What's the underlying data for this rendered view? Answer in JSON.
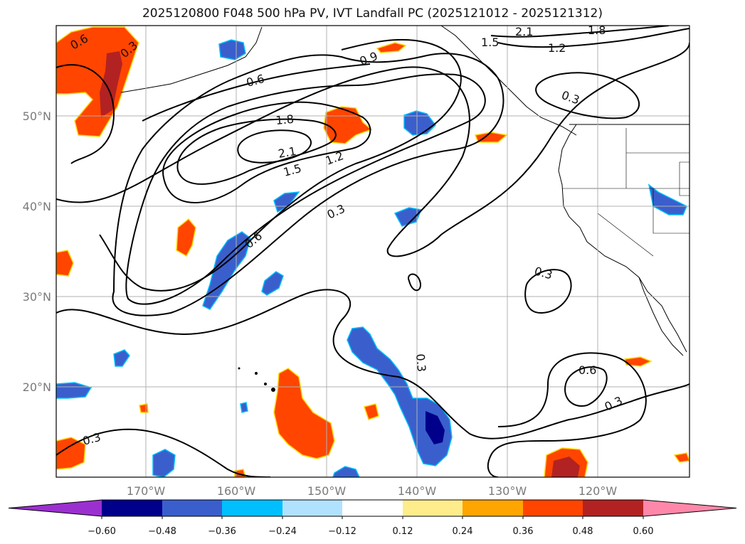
{
  "title": "2025120800 F048 500 hPa PV, IVT Landfall PC (2025121012 - 2025121312)",
  "map": {
    "lat_labels": [
      "50°N",
      "40°N",
      "30°N",
      "20°N"
    ],
    "lon_labels": [
      "170°W",
      "160°W",
      "150°W",
      "140°W",
      "130°W",
      "120°W"
    ],
    "contour_labels": [
      "0.6",
      "0.3",
      "0.9",
      "0.6",
      "1.5",
      "2.1",
      "1.8",
      "1.2",
      "0.3",
      "1.8",
      "2.1",
      "1.5",
      "1.2",
      "0.3",
      "0.6",
      "0.3",
      "0.3",
      "0.3",
      "0.6",
      "0.3"
    ],
    "colors": {
      "land": "#000000",
      "grid": "#b0b0b0",
      "contour": "#000000"
    }
  },
  "colorbar": {
    "ticks": [
      "−0.60",
      "−0.48",
      "−0.36",
      "−0.24",
      "−0.12",
      "0.12",
      "0.24",
      "0.36",
      "0.48",
      "0.60"
    ],
    "colors": [
      "#9b30d0",
      "#00008b",
      "#3a5fcd",
      "#00bfff",
      "#b0e2ff",
      "#ffffff",
      "#ffec8b",
      "#ffa500",
      "#ff4500",
      "#b22222",
      "#ff88aa"
    ]
  }
}
